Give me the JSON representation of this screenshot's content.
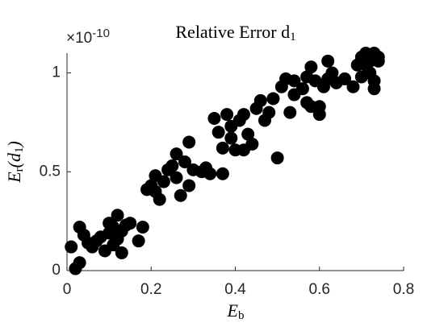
{
  "chart_data": {
    "type": "scatter",
    "title_parts": [
      "Relative Error d",
      "1"
    ],
    "xlabel_parts": [
      "E",
      "b"
    ],
    "ylabel_parts": [
      "E",
      "r",
      "(d",
      "1",
      ")"
    ],
    "y_multiplier": "×10",
    "y_exponent": "-10",
    "color": "#000000",
    "xlim": [
      0,
      0.8
    ],
    "xticks": [
      0,
      0.2,
      0.4,
      0.6,
      0.8
    ],
    "ylim": [
      0,
      1.1
    ],
    "yticks": [
      0,
      0.5,
      1
    ],
    "x": [
      0.01,
      0.03,
      0.02,
      0.03,
      0.04,
      0.06,
      0.07,
      0.08,
      0.09,
      0.1,
      0.1,
      0.11,
      0.12,
      0.12,
      0.13,
      0.13,
      0.14,
      0.15,
      0.17,
      0.18,
      0.11,
      0.05,
      0.19,
      0.2,
      0.21,
      0.21,
      0.22,
      0.23,
      0.24,
      0.25,
      0.26,
      0.26,
      0.27,
      0.28,
      0.29,
      0.29,
      0.3,
      0.32,
      0.33,
      0.34,
      0.35,
      0.36,
      0.37,
      0.37,
      0.38,
      0.39,
      0.39,
      0.4,
      0.41,
      0.42,
      0.42,
      0.43,
      0.44,
      0.45,
      0.46,
      0.47,
      0.48,
      0.49,
      0.5,
      0.51,
      0.52,
      0.53,
      0.54,
      0.54,
      0.56,
      0.57,
      0.57,
      0.58,
      0.58,
      0.59,
      0.6,
      0.6,
      0.61,
      0.62,
      0.62,
      0.63,
      0.64,
      0.66,
      0.68,
      0.69,
      0.7,
      0.7,
      0.71,
      0.71,
      0.72,
      0.72,
      0.73,
      0.73,
      0.74,
      0.74,
      0.73
    ],
    "values": [
      0.12,
      0.22,
      0.01,
      0.04,
      0.18,
      0.12,
      0.15,
      0.17,
      0.1,
      0.24,
      0.19,
      0.22,
      0.28,
      0.16,
      0.09,
      0.2,
      0.23,
      0.24,
      0.15,
      0.22,
      0.13,
      0.14,
      0.41,
      0.43,
      0.4,
      0.48,
      0.36,
      0.45,
      0.51,
      0.53,
      0.59,
      0.47,
      0.38,
      0.55,
      0.43,
      0.65,
      0.51,
      0.5,
      0.52,
      0.49,
      0.77,
      0.7,
      0.49,
      0.62,
      0.79,
      0.73,
      0.67,
      0.61,
      0.76,
      0.79,
      0.61,
      0.69,
      0.64,
      0.82,
      0.86,
      0.76,
      0.8,
      0.87,
      0.57,
      0.93,
      0.97,
      0.8,
      0.89,
      0.96,
      0.92,
      0.98,
      0.85,
      1.03,
      0.83,
      0.96,
      0.83,
      0.79,
      0.93,
      0.97,
      1.06,
      1.0,
      0.95,
      0.97,
      0.93,
      1.04,
      0.98,
      1.08,
      1.1,
      1.04,
      1.0,
      1.06,
      0.92,
      0.96,
      1.08,
      1.06,
      1.1
    ]
  }
}
